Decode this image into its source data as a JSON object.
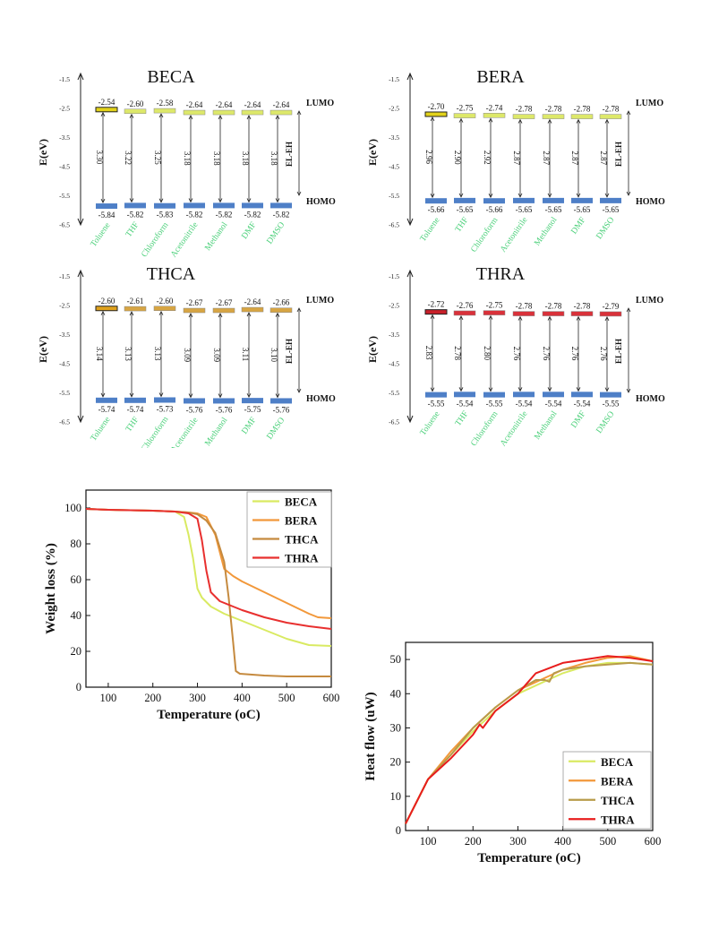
{
  "energy_panels": [
    {
      "title": "BECA",
      "bar_color": "#dde86a",
      "first_bar_color": "#e2d21a",
      "lumo": [
        "-2.54",
        "-2.60",
        "-2.58",
        "-2.64",
        "-2.64",
        "-2.64",
        "-2.64"
      ],
      "homo": [
        "-5.84",
        "-5.82",
        "-5.83",
        "-5.82",
        "-5.82",
        "-5.82",
        "-5.82"
      ],
      "gaps": [
        "3.30",
        "3.22",
        "3.25",
        "3.18",
        "3.18",
        "3.18",
        "3.18"
      ]
    },
    {
      "title": "BERA",
      "bar_color": "#dde86a",
      "first_bar_color": "#e2d21a",
      "lumo": [
        "-2.70",
        "-2.75",
        "-2.74",
        "-2.78",
        "-2.78",
        "-2.78",
        "-2.78"
      ],
      "homo": [
        "-5.66",
        "-5.65",
        "-5.66",
        "-5.65",
        "-5.65",
        "-5.65",
        "-5.65"
      ],
      "gaps": [
        "2.96",
        "2.90",
        "2.92",
        "2.87",
        "2.87",
        "2.87",
        "2.87"
      ]
    },
    {
      "title": "THCA",
      "bar_color": "#d7a543",
      "first_bar_color": "#e0a21c",
      "lumo": [
        "-2.60",
        "-2.61",
        "-2.60",
        "-2.67",
        "-2.67",
        "-2.64",
        "-2.66"
      ],
      "homo": [
        "-5.74",
        "-5.74",
        "-5.73",
        "-5.76",
        "-5.76",
        "-5.75",
        "-5.76"
      ],
      "gaps": [
        "3.14",
        "3.13",
        "3.13",
        "3.09",
        "3.09",
        "3.11",
        "3.10"
      ]
    },
    {
      "title": "THRA",
      "bar_color": "#d9313a",
      "first_bar_color": "#c8202a",
      "lumo": [
        "-2.72",
        "-2.76",
        "-2.75",
        "-2.78",
        "-2.78",
        "-2.78",
        "-2.79"
      ],
      "homo": [
        "-5.55",
        "-5.54",
        "-5.55",
        "-5.54",
        "-5.54",
        "-5.54",
        "-5.55"
      ],
      "gaps": [
        "2.83",
        "2.78",
        "2.80",
        "2.76",
        "2.76",
        "2.76",
        "2.76"
      ]
    }
  ],
  "energy_common": {
    "ylabel": "E(eV)",
    "yticks": [
      "-1.5",
      "-2.5",
      "-3.5",
      "-4.5",
      "-5.5",
      "-6.5"
    ],
    "solvents": [
      "Toluene",
      "THF",
      "Chloroform",
      "Acetonitrile",
      "Methanol",
      "DMF",
      "DMSO"
    ],
    "lumo_label": "LUMO",
    "homo_label": "HOMO",
    "gap_label": "EL-EH",
    "homo_color": "#4e7fc7",
    "solvent_color": "#4bd07a"
  },
  "chart_data": [
    {
      "type": "line",
      "xlabel": "Temperature (oC)",
      "ylabel": "Weight loss (%)",
      "xlim": [
        50,
        600
      ],
      "ylim": [
        0,
        110
      ],
      "xticks": [
        "100",
        "200",
        "300",
        "400",
        "500",
        "600"
      ],
      "yticks": [
        "0",
        "20",
        "40",
        "60",
        "80",
        "100"
      ],
      "legend_position": "top-right",
      "series": [
        {
          "name": "BECA",
          "color": "#d9ea62",
          "x": [
            50,
            100,
            200,
            250,
            270,
            280,
            290,
            300,
            310,
            330,
            360,
            400,
            450,
            500,
            550,
            600
          ],
          "y": [
            99.5,
            99,
            98.5,
            98,
            95,
            85,
            72,
            55,
            50,
            45,
            41,
            37,
            32,
            27,
            23.5,
            23
          ]
        },
        {
          "name": "BERA",
          "color": "#f2983a",
          "x": [
            50,
            100,
            200,
            250,
            280,
            300,
            320,
            340,
            360,
            380,
            400,
            450,
            500,
            550,
            570,
            600
          ],
          "y": [
            99.5,
            99,
            98.5,
            98,
            97.5,
            97,
            95,
            85,
            66,
            62,
            59,
            53,
            47,
            41,
            39,
            38.5
          ]
        },
        {
          "name": "THCA",
          "color": "#c58a3f",
          "x": [
            50,
            100,
            200,
            250,
            280,
            300,
            320,
            340,
            360,
            370,
            380,
            386,
            395,
            450,
            500,
            550,
            600
          ],
          "y": [
            99.5,
            99,
            98.5,
            98,
            97.5,
            96.5,
            93,
            86,
            70,
            50,
            25,
            9,
            7.5,
            6.5,
            6,
            6,
            6
          ]
        },
        {
          "name": "THRA",
          "color": "#e8302f",
          "x": [
            50,
            100,
            200,
            250,
            280,
            300,
            310,
            320,
            330,
            350,
            380,
            400,
            450,
            500,
            550,
            600
          ],
          "y": [
            99.5,
            99,
            98.5,
            98,
            97,
            94,
            82,
            65,
            53,
            48,
            45,
            43,
            39,
            36,
            34,
            32.5
          ]
        }
      ]
    },
    {
      "type": "line",
      "xlabel": "Temperature (oC)",
      "ylabel": "Heat flow (uW)",
      "xlim": [
        50,
        600
      ],
      "ylim": [
        0,
        55
      ],
      "xticks": [
        "100",
        "200",
        "300",
        "400",
        "500",
        "600"
      ],
      "yticks": [
        "0",
        "10",
        "20",
        "30",
        "40",
        "50"
      ],
      "legend_position": "bottom-right",
      "series": [
        {
          "name": "BECA",
          "color": "#d9ea62",
          "x": [
            50,
            100,
            150,
            200,
            250,
            300,
            350,
            400,
            450,
            500,
            550,
            600
          ],
          "y": [
            2,
            15,
            22,
            29,
            35,
            40,
            43,
            46,
            48,
            49,
            49,
            48.5
          ]
        },
        {
          "name": "BERA",
          "color": "#f2983a",
          "x": [
            50,
            100,
            150,
            200,
            250,
            300,
            350,
            400,
            450,
            500,
            550,
            600
          ],
          "y": [
            2,
            15,
            23,
            30,
            36,
            41,
            44,
            47,
            49,
            50.5,
            51,
            49.5
          ]
        },
        {
          "name": "THCA",
          "color": "#b89b4a",
          "x": [
            50,
            100,
            150,
            200,
            250,
            300,
            340,
            360,
            370,
            380,
            400,
            450,
            500,
            550,
            600
          ],
          "y": [
            2,
            15,
            22,
            30,
            36,
            41,
            44,
            44,
            43.5,
            46,
            47,
            48,
            48.5,
            49,
            48.5
          ]
        },
        {
          "name": "THRA",
          "color": "#e81d1d",
          "x": [
            50,
            100,
            150,
            200,
            215,
            222,
            250,
            300,
            320,
            340,
            400,
            450,
            500,
            550,
            600
          ],
          "y": [
            2,
            15,
            21,
            28,
            31,
            30,
            35,
            40,
            43,
            46,
            49,
            50,
            51,
            50.5,
            49.5
          ]
        }
      ]
    }
  ]
}
